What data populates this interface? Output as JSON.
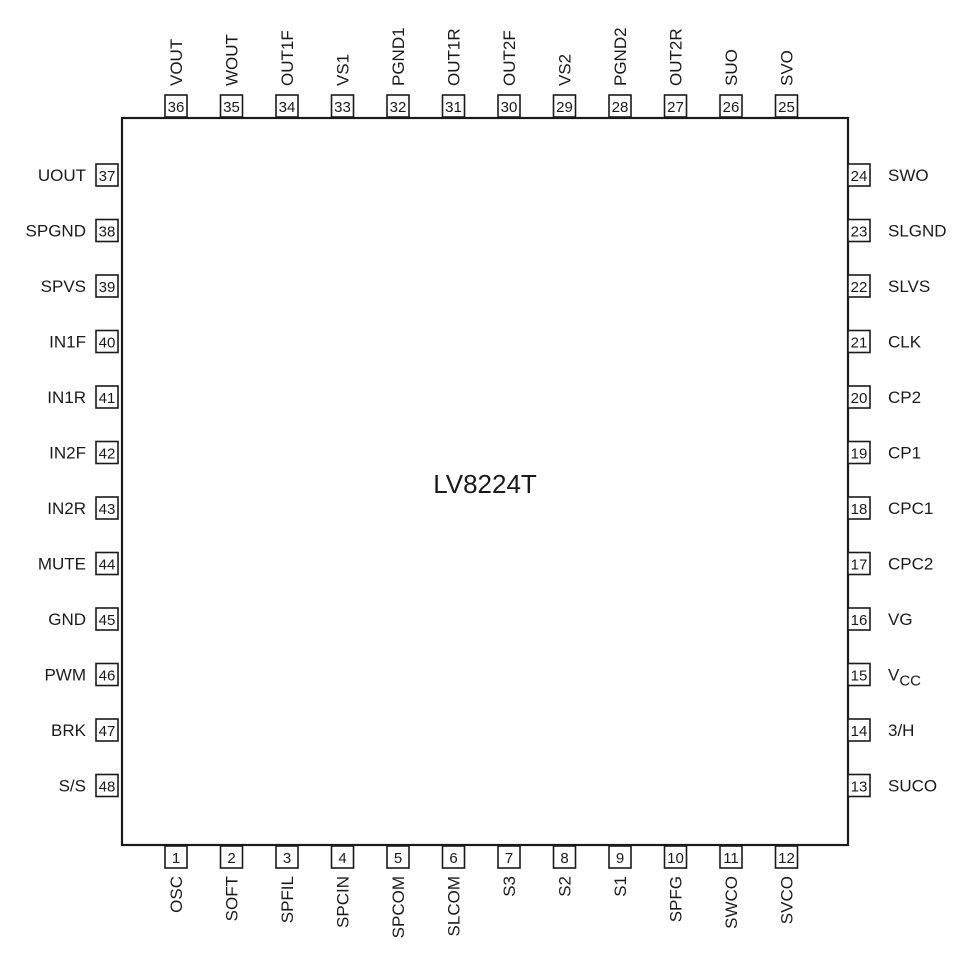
{
  "chip": {
    "part_number": "LV8224T"
  },
  "pins": {
    "top": [
      {
        "num": "36",
        "name": "VOUT"
      },
      {
        "num": "35",
        "name": "WOUT"
      },
      {
        "num": "34",
        "name": "OUT1F"
      },
      {
        "num": "33",
        "name": "VS1"
      },
      {
        "num": "32",
        "name": "PGND1"
      },
      {
        "num": "31",
        "name": "OUT1R"
      },
      {
        "num": "30",
        "name": "OUT2F"
      },
      {
        "num": "29",
        "name": "VS2"
      },
      {
        "num": "28",
        "name": "PGND2"
      },
      {
        "num": "27",
        "name": "OUT2R"
      },
      {
        "num": "26",
        "name": "SUO"
      },
      {
        "num": "25",
        "name": "SVO"
      }
    ],
    "bottom": [
      {
        "num": "1",
        "name": "OSC"
      },
      {
        "num": "2",
        "name": "SOFT"
      },
      {
        "num": "3",
        "name": "SPFIL"
      },
      {
        "num": "4",
        "name": "SPCIN"
      },
      {
        "num": "5",
        "name": "SPCOM"
      },
      {
        "num": "6",
        "name": "SLCOM"
      },
      {
        "num": "7",
        "name": "S3"
      },
      {
        "num": "8",
        "name": "S2"
      },
      {
        "num": "9",
        "name": "S1"
      },
      {
        "num": "10",
        "name": "SPFG"
      },
      {
        "num": "11",
        "name": "SWCO"
      },
      {
        "num": "12",
        "name": "SVCO"
      }
    ],
    "left": [
      {
        "num": "37",
        "name": "UOUT"
      },
      {
        "num": "38",
        "name": "SPGND"
      },
      {
        "num": "39",
        "name": "SPVS"
      },
      {
        "num": "40",
        "name": "IN1F"
      },
      {
        "num": "41",
        "name": "IN1R"
      },
      {
        "num": "42",
        "name": "IN2F"
      },
      {
        "num": "43",
        "name": "IN2R"
      },
      {
        "num": "44",
        "name": "MUTE"
      },
      {
        "num": "45",
        "name": "GND"
      },
      {
        "num": "46",
        "name": "PWM"
      },
      {
        "num": "47",
        "name": "BRK"
      },
      {
        "num": "48",
        "name": "S/S"
      }
    ],
    "right": [
      {
        "num": "24",
        "name": "SWO"
      },
      {
        "num": "23",
        "name": "SLGND"
      },
      {
        "num": "22",
        "name": "SLVS"
      },
      {
        "num": "21",
        "name": "CLK"
      },
      {
        "num": "20",
        "name": "CP2"
      },
      {
        "num": "19",
        "name": "CP1"
      },
      {
        "num": "18",
        "name": "CPC1"
      },
      {
        "num": "17",
        "name": "CPC2"
      },
      {
        "num": "16",
        "name": "VG"
      },
      {
        "num": "15",
        "name": "V",
        "sub": "CC"
      },
      {
        "num": "14",
        "name": "3/H"
      },
      {
        "num": "13",
        "name": "SUCO"
      }
    ]
  }
}
